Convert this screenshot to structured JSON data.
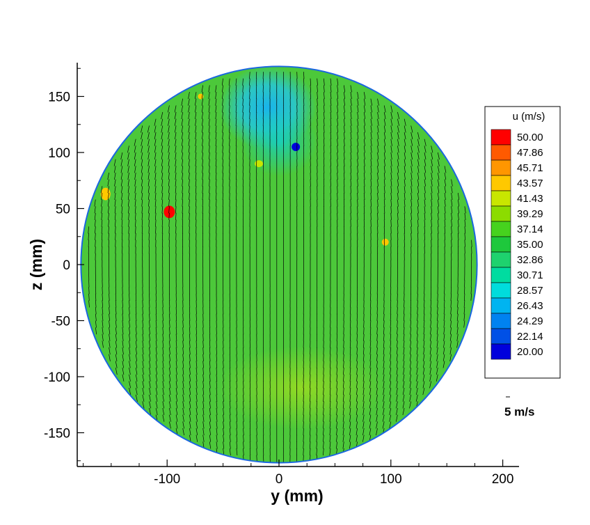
{
  "chart_data": {
    "type": "heatmap",
    "title": "",
    "xlabel": "y (mm)",
    "ylabel": "z (mm)",
    "xlim": [
      -182,
      217
    ],
    "ylim": [
      -180,
      180
    ],
    "x_ticks": [
      -100,
      0,
      100,
      200
    ],
    "y_ticks": [
      150,
      100,
      50,
      0,
      -50,
      -100,
      -150
    ],
    "x_tick_labels": [
      "-100",
      "0",
      "100",
      "200"
    ],
    "y_tick_labels": [
      "150",
      "100",
      "50",
      "0",
      "-50",
      "-100",
      "-150"
    ],
    "domain_radius_mm": 177,
    "colorbar": {
      "title": "u (m/s)",
      "levels": [
        "50.00",
        "47.86",
        "45.71",
        "43.57",
        "41.43",
        "39.29",
        "37.14",
        "35.00",
        "32.86",
        "30.71",
        "28.57",
        "26.43",
        "24.29",
        "22.14",
        "20.00"
      ],
      "level_values": [
        50.0,
        47.86,
        45.71,
        43.57,
        41.43,
        39.29,
        37.14,
        35.0,
        32.86,
        30.71,
        28.57,
        26.43,
        24.29,
        22.14,
        20.0
      ],
      "colors": [
        "#ff0000",
        "#ff5a00",
        "#ff9600",
        "#ffc800",
        "#c8e600",
        "#8cdc00",
        "#46d21e",
        "#1ec83c",
        "#1ed26e",
        "#00dca0",
        "#00dcdc",
        "#00b4f0",
        "#0082f0",
        "#0050e6",
        "#0000dc"
      ]
    },
    "regions": [
      {
        "name": "background",
        "value": 37.0
      },
      {
        "name": "top-core-low",
        "y": -10,
        "z": 140,
        "value": 26.0
      },
      {
        "name": "upper-low",
        "y": 0,
        "z": 110,
        "value": 28.0
      },
      {
        "name": "lower-high",
        "y": 20,
        "z": -110,
        "value": 39.5
      },
      {
        "name": "hotspot-left",
        "y": -98,
        "z": 47,
        "value": 49.0
      },
      {
        "name": "hotspot-far-left",
        "y": -155,
        "z": 63,
        "value": 43.5
      },
      {
        "name": "hotspot-right",
        "y": 95,
        "z": 20,
        "value": 43.0
      },
      {
        "name": "hotspot-top",
        "y": -70,
        "z": 150,
        "value": 43.0
      },
      {
        "name": "spot-upper-mid",
        "y": -18,
        "z": 90,
        "value": 42.0
      },
      {
        "name": "spot-blue",
        "y": 15,
        "z": 105,
        "value": 21.0
      }
    ],
    "vector_reference": {
      "label": "5 m/s",
      "magnitude_mps": 5
    }
  }
}
